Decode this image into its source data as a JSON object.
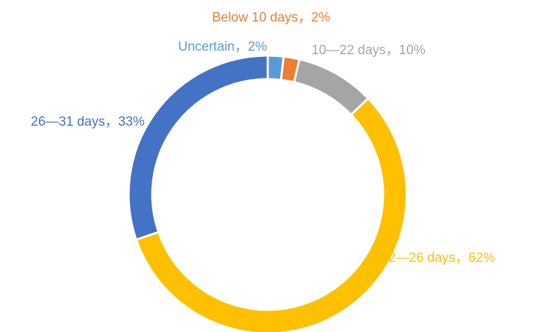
{
  "chart_data": {
    "type": "donut",
    "categories": [
      "Uncertain",
      "Below 10 days",
      "10—22 days",
      "22—26 days",
      "26—31 days"
    ],
    "values": [
      2,
      2,
      10,
      62,
      33
    ],
    "value_labels": [
      "Uncertain，2%",
      "Below 10 days，2%",
      "10—22 days，10%",
      "22—26 days，62%",
      "26—31 days，33%"
    ],
    "colors": [
      "#5b9bd5",
      "#ed7d31",
      "#a5a5a5",
      "#ffc000",
      "#4472c4"
    ]
  }
}
